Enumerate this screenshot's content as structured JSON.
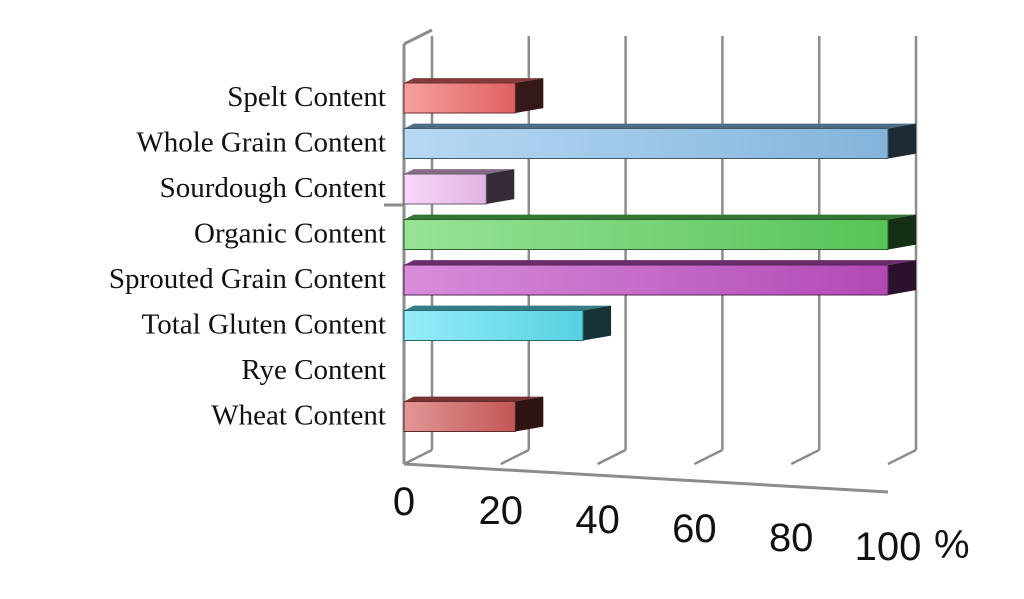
{
  "chart_data": {
    "type": "bar",
    "orientation": "horizontal",
    "style": "3d",
    "categories": [
      "Spelt Content",
      "Whole Grain Content",
      "Sourdough Content",
      "Organic Content",
      "Sprouted Grain Content",
      "Total Gluten Content",
      "Rye Content",
      "Wheat Content"
    ],
    "values": [
      23,
      100,
      17,
      100,
      100,
      37,
      0,
      23
    ],
    "bar_colors": [
      "#f26b6b",
      "#8ec4ee",
      "#f3c3f5",
      "#5fd45f",
      "#c24fc6",
      "#5ee3f5",
      "#cccccc",
      "#d45d5d"
    ],
    "xticks": [
      "0",
      "20",
      "40",
      "60",
      "80",
      "100"
    ],
    "tick_values": [
      0,
      20,
      40,
      60,
      80,
      100
    ],
    "unit": "%",
    "xlim": [
      0,
      100
    ],
    "grid": true,
    "legend": "none"
  }
}
